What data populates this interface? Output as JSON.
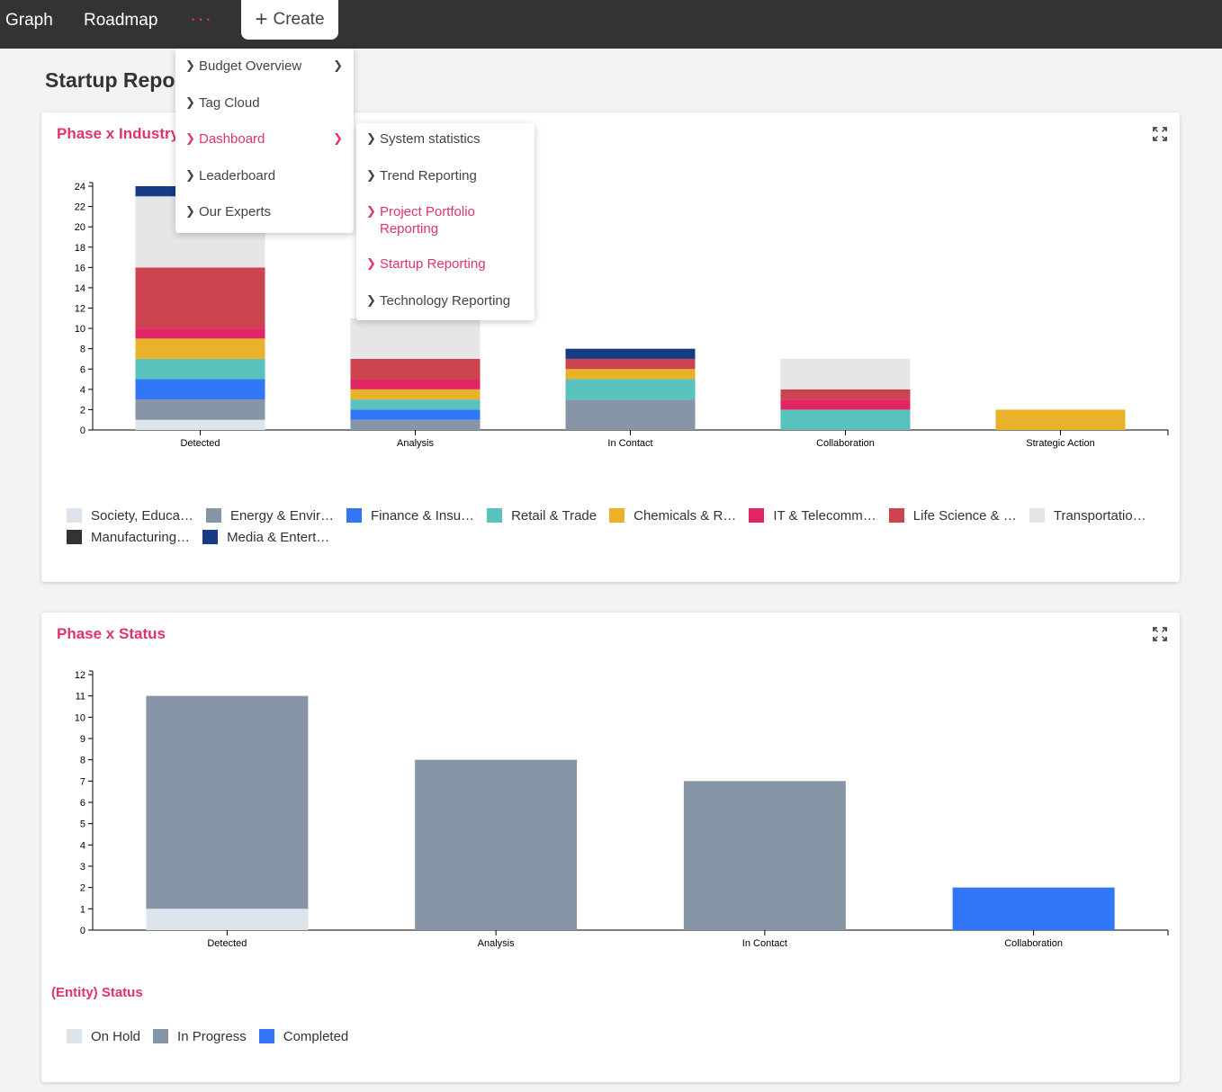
{
  "nav": {
    "items": [
      "Graph",
      "Roadmap"
    ],
    "more_label": "···",
    "create_label": "Create"
  },
  "page_title": "Startup Repor",
  "main_menu": {
    "items": [
      {
        "label": "Budget Overview",
        "has_submenu": true
      },
      {
        "label": "Tag Cloud",
        "has_submenu": false
      },
      {
        "label": "Dashboard",
        "has_submenu": true,
        "active": true
      },
      {
        "label": "Leaderboard",
        "has_submenu": false
      },
      {
        "label": "Our Experts",
        "has_submenu": false
      }
    ]
  },
  "sub_menu": {
    "items": [
      {
        "label": "System statistics"
      },
      {
        "label": "Trend Reporting"
      },
      {
        "label": "Project Portfolio Reporting",
        "active": true
      },
      {
        "label": "Startup Reporting",
        "active": true
      },
      {
        "label": "Technology Reporting"
      }
    ]
  },
  "industry_card": {
    "title": "Phase x Industry",
    "legend": [
      {
        "label": "Society, Educa…",
        "color": "#dde4ec"
      },
      {
        "label": "Energy & Envir…",
        "color": "#8796a7"
      },
      {
        "label": "Finance & Insu…",
        "color": "#3176f6"
      },
      {
        "label": "Retail & Trade",
        "color": "#59c2bd"
      },
      {
        "label": "Chemicals & R…",
        "color": "#e9b22a"
      },
      {
        "label": "IT & Telecomm…",
        "color": "#e22565"
      },
      {
        "label": "Life Science & …",
        "color": "#cd4451"
      },
      {
        "label": "Transportatio…",
        "color": "#e6e6e6"
      },
      {
        "label": "Manufacturing…",
        "color": "#333333"
      },
      {
        "label": "Media & Entert…",
        "color": "#153c84"
      }
    ]
  },
  "status_card": {
    "title": "Phase x Status",
    "status_title": "(Entity) Status",
    "legend": [
      {
        "label": "On Hold",
        "color": "#dde4ec"
      },
      {
        "label": "In Progress",
        "color": "#8796a7"
      },
      {
        "label": "Completed",
        "color": "#3176f6"
      }
    ]
  },
  "chart_data": [
    {
      "type": "bar",
      "stacked": true,
      "title": "Phase x Industry",
      "categories": [
        "Detected",
        "Analysis",
        "In Contact",
        "Collaboration",
        "Strategic Action"
      ],
      "ylim": [
        0,
        24
      ],
      "yticks": [
        0,
        2,
        4,
        6,
        8,
        10,
        12,
        14,
        16,
        18,
        20,
        22,
        24
      ],
      "series": [
        {
          "name": "Society, Educa…",
          "color": "#dde4ec",
          "values": [
            1,
            0,
            0,
            0,
            0
          ]
        },
        {
          "name": "Energy & Envir…",
          "color": "#8796a7",
          "values": [
            2,
            1,
            3,
            0,
            0
          ]
        },
        {
          "name": "Finance & Insu…",
          "color": "#3176f6",
          "values": [
            2,
            1,
            0,
            0,
            0
          ]
        },
        {
          "name": "Retail & Trade",
          "color": "#59c2bd",
          "values": [
            2,
            1,
            2,
            2,
            0
          ]
        },
        {
          "name": "Chemicals & R…",
          "color": "#e9b22a",
          "values": [
            2,
            1,
            1,
            0,
            2
          ]
        },
        {
          "name": "IT & Telecomm…",
          "color": "#e22565",
          "values": [
            1,
            1,
            0,
            1,
            0
          ]
        },
        {
          "name": "Life Science & …",
          "color": "#cd4451",
          "values": [
            6,
            2,
            1,
            1,
            0
          ]
        },
        {
          "name": "Transportatio…",
          "color": "#e6e6e6",
          "values": [
            7,
            4,
            0,
            3,
            0
          ]
        },
        {
          "name": "Manufacturing…",
          "color": "#333333",
          "values": [
            0,
            0,
            0,
            0,
            0
          ]
        },
        {
          "name": "Media & Entert…",
          "color": "#153c84",
          "values": [
            1,
            0,
            1,
            0,
            0
          ]
        }
      ]
    },
    {
      "type": "bar",
      "stacked": true,
      "title": "Phase x Status",
      "categories": [
        "Detected",
        "Analysis",
        "In Contact",
        "Collaboration"
      ],
      "ylim": [
        0,
        12
      ],
      "yticks": [
        0,
        1,
        2,
        3,
        4,
        5,
        6,
        7,
        8,
        9,
        10,
        11,
        12
      ],
      "legend_title": "(Entity) Status",
      "series": [
        {
          "name": "On Hold",
          "color": "#dde4ec",
          "values": [
            1,
            0,
            0,
            0
          ]
        },
        {
          "name": "In Progress",
          "color": "#8796a7",
          "values": [
            10,
            8,
            7,
            0
          ]
        },
        {
          "name": "Completed",
          "color": "#3176f6",
          "values": [
            0,
            0,
            0,
            2
          ]
        }
      ]
    }
  ]
}
